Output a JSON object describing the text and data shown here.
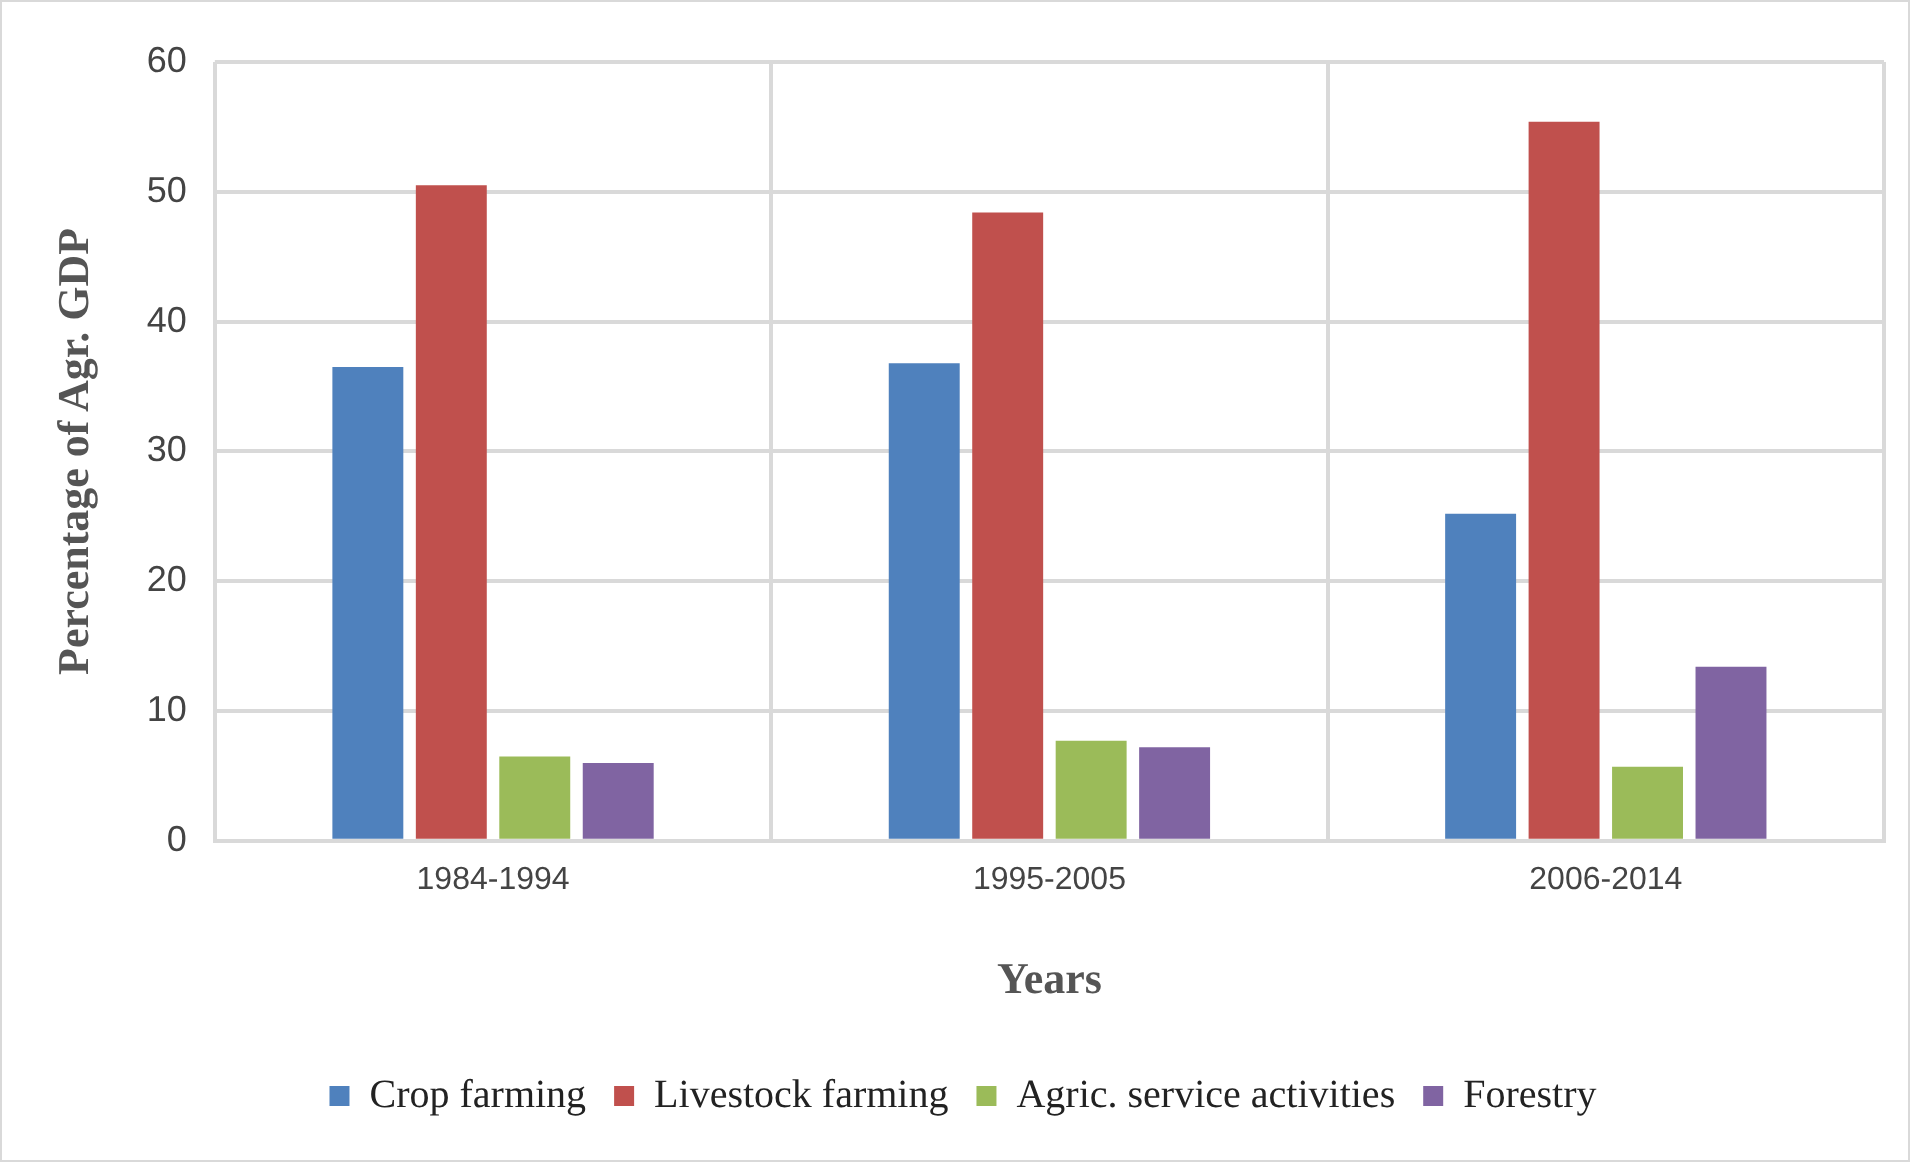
{
  "chart_data": {
    "type": "bar",
    "xlabel": "Years",
    "ylabel": "Percentage of Agr. GDP",
    "categories": [
      "1984-1994",
      "1995-2005",
      "2006-2014"
    ],
    "series": [
      {
        "name": "Crop farming",
        "color": "#4f81bd",
        "values": [
          36.5,
          36.8,
          25.2
        ]
      },
      {
        "name": "Livestock farming",
        "color": "#c0504d",
        "values": [
          50.5,
          48.4,
          55.4
        ]
      },
      {
        "name": "Agric. service activities",
        "color": "#9bbb59",
        "values": [
          6.5,
          7.7,
          5.7
        ]
      },
      {
        "name": "Forestry",
        "color": "#8064a2",
        "values": [
          6.0,
          7.2,
          13.4
        ]
      }
    ],
    "ylim": [
      0,
      60
    ],
    "yticks": [
      0,
      10,
      20,
      30,
      40,
      50,
      60
    ],
    "grid": true,
    "legend": "bottom"
  }
}
